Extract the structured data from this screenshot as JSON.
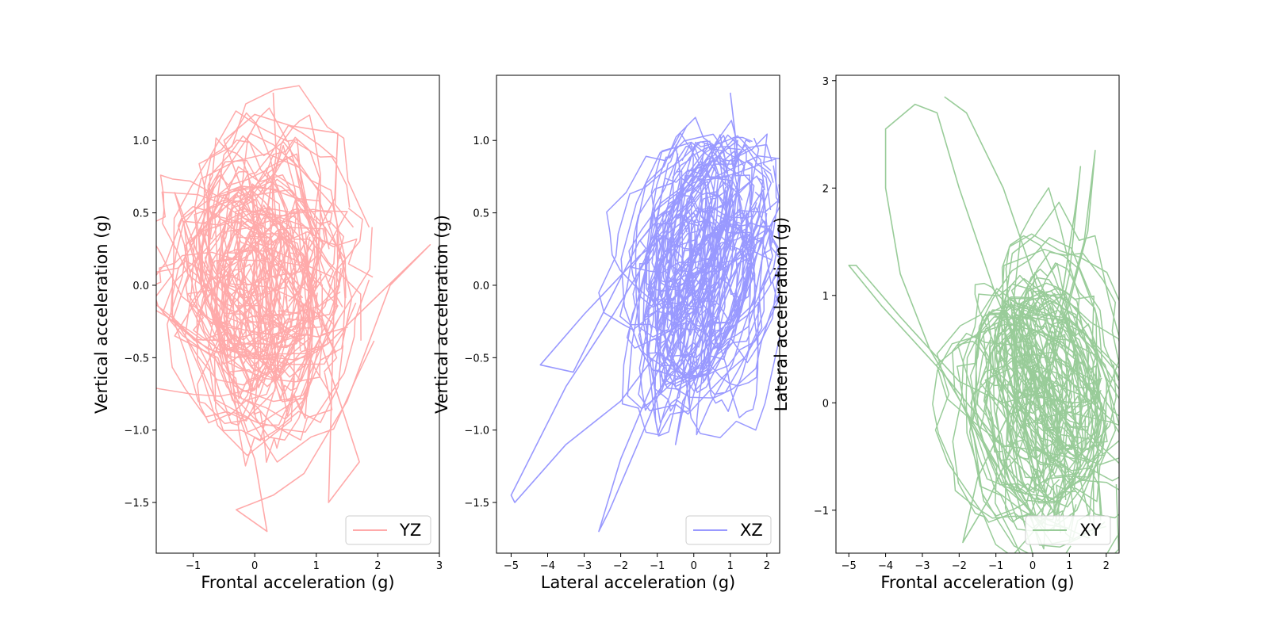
{
  "chart_data": [
    {
      "type": "line",
      "plane": "YZ",
      "color": "#ffaaaa",
      "xlabel": "Frontal acceleration (g)",
      "ylabel": "Vertical acceleration  (g)",
      "xlim": [
        -1.6,
        3.0
      ],
      "ylim": [
        -1.85,
        1.45
      ],
      "xticks": [
        -1,
        0,
        1,
        2,
        3
      ],
      "yticks": [
        -1.5,
        -1.0,
        -0.5,
        0.0,
        0.5,
        1.0
      ],
      "ytick_labels": [
        "−1.5",
        "−1.0",
        "−0.5",
        "0.0",
        "0.5",
        "1.0"
      ],
      "xtick_labels": [
        "−1",
        "0",
        "1",
        "2",
        "3"
      ],
      "legend": {
        "label": "YZ",
        "placement": "lower right"
      },
      "trajectory": {
        "description_free": true,
        "center": [
          0.1,
          0.0
        ],
        "extent_x": [
          -1.4,
          2.85
        ],
        "extent_y": [
          -1.7,
          1.33
        ],
        "points_approx": [
          [
            0.3,
            1.33
          ],
          [
            0.35,
            0.9
          ],
          [
            0.2,
            0.5
          ],
          [
            -0.3,
            0.2
          ],
          [
            -0.8,
            -0.1
          ],
          [
            -1.3,
            0.64
          ],
          [
            -1.0,
            0.3
          ],
          [
            -0.5,
            -0.3
          ],
          [
            0.3,
            -0.6
          ],
          [
            1.2,
            -0.4
          ],
          [
            2.85,
            0.28
          ],
          [
            2.2,
            0.0
          ],
          [
            1.5,
            -0.8
          ],
          [
            0.8,
            -1.3
          ],
          [
            0.3,
            -1.45
          ],
          [
            -0.3,
            -1.55
          ],
          [
            0.2,
            -1.7
          ],
          [
            0.0,
            -1.2
          ],
          [
            -0.6,
            -0.5
          ],
          [
            -1.3,
            -0.35
          ],
          [
            -0.8,
            0.0
          ],
          [
            0.0,
            0.3
          ],
          [
            1.3,
            0.05
          ],
          [
            1.2,
            -1.5
          ],
          [
            1.7,
            -1.22
          ],
          [
            1.0,
            -0.3
          ],
          [
            0.2,
            0.2
          ],
          [
            -0.5,
            1.0
          ],
          [
            0.0,
            1.18
          ],
          [
            0.6,
            1.1
          ],
          [
            1.35,
            1.05
          ],
          [
            1.3,
            0.6
          ],
          [
            0.7,
            0.1
          ],
          [
            -0.2,
            -0.2
          ]
        ]
      }
    },
    {
      "type": "line",
      "plane": "XZ",
      "color": "#9999ff",
      "xlabel": "Lateral acceleration (g)",
      "ylabel": "Vertical acceleration  (g)",
      "xlim": [
        -5.4,
        2.35
      ],
      "ylim": [
        -1.85,
        1.45
      ],
      "xticks": [
        -5,
        -4,
        -3,
        -2,
        -1,
        0,
        1,
        2
      ],
      "yticks": [
        -1.5,
        -1.0,
        -0.5,
        0.0,
        0.5,
        1.0
      ],
      "ytick_labels": [
        "−1.5",
        "−1.0",
        "−0.5",
        "0.0",
        "0.5",
        "1.0"
      ],
      "xtick_labels": [
        "−5",
        "−4",
        "−3",
        "−2",
        "−1",
        "0",
        "1",
        "2"
      ],
      "legend": {
        "label": "XZ",
        "placement": "lower right"
      },
      "trajectory": {
        "center": [
          0.3,
          0.1
        ],
        "extent_x": [
          -5.0,
          2.0
        ],
        "extent_y": [
          -1.7,
          1.33
        ],
        "points_approx": [
          [
            1.0,
            1.33
          ],
          [
            1.2,
            0.9
          ],
          [
            0.8,
            0.4
          ],
          [
            0.2,
            0.0
          ],
          [
            -0.8,
            -0.4
          ],
          [
            -2.0,
            -0.8
          ],
          [
            -3.5,
            -1.1
          ],
          [
            -4.9,
            -1.5
          ],
          [
            -5.0,
            -1.45
          ],
          [
            -4.5,
            -1.2
          ],
          [
            -3.5,
            -0.7
          ],
          [
            -2.2,
            -0.2
          ],
          [
            -1.0,
            0.3
          ],
          [
            0.0,
            0.6
          ],
          [
            0.7,
            0.9
          ],
          [
            0.9,
            0.5
          ],
          [
            0.4,
            0.0
          ],
          [
            -0.4,
            -0.4
          ],
          [
            -1.2,
            -0.9
          ],
          [
            -2.3,
            -1.55
          ],
          [
            -2.6,
            -1.7
          ],
          [
            -2.0,
            -1.2
          ],
          [
            -1.0,
            -0.6
          ],
          [
            0.0,
            -0.2
          ],
          [
            1.0,
            0.3
          ],
          [
            1.9,
            0.66
          ],
          [
            2.0,
            0.4
          ],
          [
            1.4,
            0.0
          ],
          [
            0.6,
            -0.4
          ],
          [
            -0.3,
            -0.8
          ],
          [
            -0.5,
            -1.1
          ],
          [
            0.0,
            -0.5
          ],
          [
            0.8,
            0.2
          ],
          [
            1.2,
            1.0
          ],
          [
            0.2,
            0.8
          ],
          [
            -1.5,
            0.3
          ],
          [
            -3.3,
            -0.6
          ],
          [
            -4.2,
            -0.55
          ],
          [
            -3.0,
            -0.2
          ],
          [
            -1.5,
            0.2
          ],
          [
            0.0,
            0.5
          ],
          [
            0.8,
            0.1
          ]
        ]
      }
    },
    {
      "type": "line",
      "plane": "XY",
      "color": "#99cc99",
      "xlabel": "Frontal acceleration  (g)",
      "ylabel": "Lateral acceleration (g)",
      "xlim": [
        -5.35,
        2.35
      ],
      "ylim": [
        -1.4,
        3.05
      ],
      "xticks": [
        -5,
        -4,
        -3,
        -2,
        -1,
        0,
        1,
        2
      ],
      "yticks": [
        -1,
        0,
        1,
        2,
        3
      ],
      "ytick_labels": [
        "−1",
        "0",
        "1",
        "2",
        "3"
      ],
      "xtick_labels": [
        "−5",
        "−4",
        "−3",
        "−2",
        "−1",
        "0",
        "1",
        "2"
      ],
      "legend": {
        "label": "XY",
        "placement": "lower right"
      },
      "trajectory": {
        "center": [
          0.2,
          0.1
        ],
        "extent_x": [
          -5.0,
          2.0
        ],
        "extent_y": [
          -1.3,
          2.85
        ],
        "points_approx": [
          [
            -2.4,
            2.85
          ],
          [
            -1.8,
            2.7
          ],
          [
            -0.8,
            2.0
          ],
          [
            0.2,
            1.0
          ],
          [
            0.8,
            0.3
          ],
          [
            1.5,
            0.0
          ],
          [
            1.8,
            -0.5
          ],
          [
            1.2,
            -1.0
          ],
          [
            0.4,
            -1.2
          ],
          [
            -0.6,
            -0.8
          ],
          [
            -1.6,
            -0.2
          ],
          [
            -2.8,
            0.5
          ],
          [
            -3.6,
            1.2
          ],
          [
            -4.0,
            2.0
          ],
          [
            -4.0,
            2.55
          ],
          [
            -3.2,
            2.78
          ],
          [
            -2.6,
            2.7
          ],
          [
            -2.0,
            2.0
          ],
          [
            -1.0,
            1.0
          ],
          [
            0.0,
            0.2
          ],
          [
            0.8,
            1.0
          ],
          [
            1.2,
            1.9
          ],
          [
            1.3,
            2.2
          ],
          [
            1.0,
            1.2
          ],
          [
            0.4,
            0.3
          ],
          [
            -0.4,
            -0.3
          ],
          [
            -1.2,
            -0.9
          ],
          [
            -1.9,
            -1.3
          ],
          [
            -1.5,
            -0.7
          ],
          [
            -0.5,
            0.0
          ],
          [
            0.6,
            0.4
          ],
          [
            1.7,
            0.2
          ],
          [
            1.9,
            -0.1
          ],
          [
            1.4,
            -0.7
          ],
          [
            0.5,
            -0.9
          ],
          [
            -0.6,
            -0.5
          ],
          [
            -2.5,
            0.3
          ],
          [
            -4.1,
            0.9
          ],
          [
            -5.0,
            1.28
          ],
          [
            -4.8,
            1.28
          ],
          [
            -3.6,
            0.8
          ],
          [
            -2.0,
            0.2
          ],
          [
            -0.8,
            0.0
          ],
          [
            0.3,
            0.1
          ],
          [
            1.4,
            1.5
          ],
          [
            1.7,
            2.35
          ],
          [
            1.5,
            1.6
          ],
          [
            0.6,
            0.4
          ]
        ]
      }
    }
  ]
}
